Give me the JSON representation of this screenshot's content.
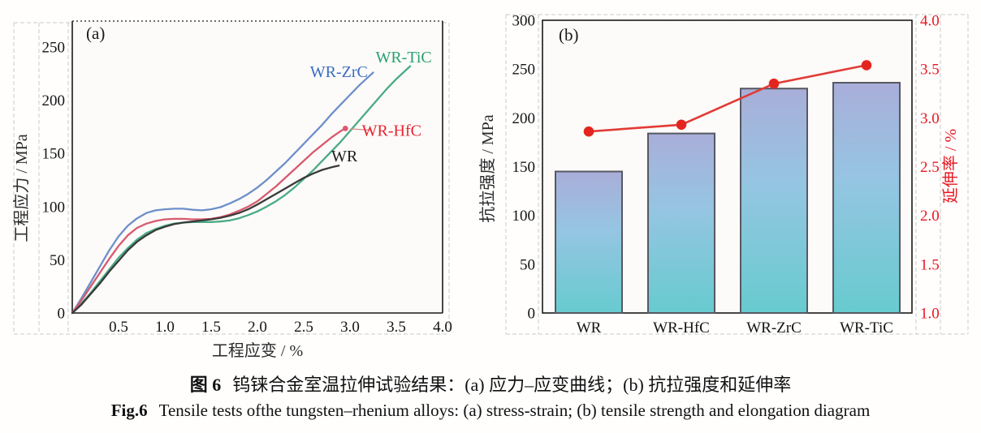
{
  "figure": {
    "caption_zh": {
      "prefix": "图 6",
      "text": "钨铼合金室温拉伸试验结果：(a) 应力–应变曲线；(b) 抗拉强度和延伸率"
    },
    "caption_en": {
      "prefix": "Fig.6",
      "text": "Tensile tests ofthe tungsten–rhenium alloys: (a) stress-strain; (b) tensile strength and elongation diagram"
    }
  },
  "chart_data": [
    {
      "id": "a",
      "type": "line",
      "panel_label": "(a)",
      "xlabel": "工程应变 / %",
      "ylabel": "工程应力 / MPa",
      "xlim": [
        0,
        4.0
      ],
      "ylim": [
        0,
        275
      ],
      "xticks": [
        0.5,
        1.0,
        1.5,
        2.0,
        2.5,
        3.0,
        3.5,
        4.0
      ],
      "yticks": [
        0,
        50,
        100,
        150,
        200,
        250
      ],
      "grid": false,
      "legend_position": "inline-labels",
      "series": [
        {
          "name": "WR-ZrC",
          "color": "#6d8fca",
          "label_color": "#3a6cc0",
          "label_at": [
            2.88,
            227
          ],
          "points": [
            [
              0,
              0
            ],
            [
              0.1,
              14
            ],
            [
              0.2,
              29
            ],
            [
              0.3,
              44
            ],
            [
              0.4,
              59
            ],
            [
              0.5,
              72
            ],
            [
              0.6,
              82
            ],
            [
              0.7,
              89
            ],
            [
              0.8,
              94
            ],
            [
              0.9,
              96.5
            ],
            [
              1.0,
              97.5
            ],
            [
              1.1,
              98
            ],
            [
              1.2,
              98
            ],
            [
              1.3,
              97
            ],
            [
              1.4,
              96.5
            ],
            [
              1.5,
              97.5
            ],
            [
              1.6,
              99.5
            ],
            [
              1.7,
              103
            ],
            [
              1.8,
              107
            ],
            [
              1.9,
              112
            ],
            [
              2.0,
              118
            ],
            [
              2.1,
              125
            ],
            [
              2.2,
              133
            ],
            [
              2.3,
              141
            ],
            [
              2.4,
              150
            ],
            [
              2.5,
              159
            ],
            [
              2.6,
              168
            ],
            [
              2.7,
              177
            ],
            [
              2.8,
              187
            ],
            [
              2.9,
              196
            ],
            [
              3.0,
              205
            ],
            [
              3.1,
              214
            ],
            [
              3.2,
              222
            ],
            [
              3.25,
              226
            ]
          ]
        },
        {
          "name": "WR-TiC",
          "color": "#4aab85",
          "label_color": "#2aa172",
          "label_at": [
            3.58,
            241
          ],
          "points": [
            [
              0,
              0
            ],
            [
              0.1,
              9
            ],
            [
              0.2,
              19
            ],
            [
              0.3,
              30
            ],
            [
              0.4,
              41
            ],
            [
              0.5,
              52
            ],
            [
              0.6,
              61
            ],
            [
              0.7,
              69
            ],
            [
              0.8,
              75
            ],
            [
              0.9,
              79
            ],
            [
              1.0,
              82
            ],
            [
              1.1,
              84
            ],
            [
              1.2,
              85
            ],
            [
              1.3,
              85.5
            ],
            [
              1.4,
              85.5
            ],
            [
              1.5,
              85.5
            ],
            [
              1.6,
              86
            ],
            [
              1.7,
              87
            ],
            [
              1.8,
              89
            ],
            [
              1.9,
              92
            ],
            [
              2.0,
              95.5
            ],
            [
              2.1,
              100
            ],
            [
              2.2,
              105
            ],
            [
              2.3,
              111
            ],
            [
              2.4,
              118
            ],
            [
              2.5,
              126
            ],
            [
              2.6,
              134
            ],
            [
              2.7,
              143
            ],
            [
              2.8,
              152
            ],
            [
              2.9,
              161
            ],
            [
              3.0,
              171
            ],
            [
              3.1,
              181
            ],
            [
              3.2,
              191
            ],
            [
              3.3,
              201
            ],
            [
              3.4,
              211
            ],
            [
              3.5,
              220
            ],
            [
              3.6,
              228
            ],
            [
              3.65,
              232
            ]
          ]
        },
        {
          "name": "WR-HfC",
          "color": "#d95a6e",
          "label_color": "#e8232e",
          "label_at": [
            3.45,
            172
          ],
          "end_marker": [
            2.95,
            173.5
          ],
          "leader": [
            [
              3.0,
              173
            ],
            [
              3.22,
              172
            ]
          ],
          "points": [
            [
              0,
              0
            ],
            [
              0.1,
              12
            ],
            [
              0.2,
              25
            ],
            [
              0.3,
              38
            ],
            [
              0.4,
              51
            ],
            [
              0.5,
              63
            ],
            [
              0.6,
              73
            ],
            [
              0.7,
              80
            ],
            [
              0.8,
              84
            ],
            [
              0.9,
              86.5
            ],
            [
              1.0,
              88
            ],
            [
              1.1,
              88.5
            ],
            [
              1.2,
              88.5
            ],
            [
              1.3,
              88
            ],
            [
              1.4,
              88
            ],
            [
              1.5,
              88.5
            ],
            [
              1.6,
              90
            ],
            [
              1.7,
              92.5
            ],
            [
              1.8,
              96
            ],
            [
              1.9,
              100
            ],
            [
              2.0,
              105
            ],
            [
              2.1,
              112
            ],
            [
              2.2,
              119
            ],
            [
              2.3,
              127
            ],
            [
              2.4,
              135
            ],
            [
              2.5,
              143
            ],
            [
              2.6,
              151
            ],
            [
              2.7,
              158
            ],
            [
              2.8,
              165
            ],
            [
              2.9,
              171
            ],
            [
              2.95,
              173.5
            ]
          ]
        },
        {
          "name": "WR",
          "color": "#3a3a3a",
          "label_color": "#1a1a1a",
          "label_at": [
            2.94,
            148
          ],
          "points": [
            [
              0,
              0
            ],
            [
              0.1,
              8
            ],
            [
              0.2,
              18
            ],
            [
              0.3,
              28
            ],
            [
              0.4,
              39
            ],
            [
              0.5,
              49
            ],
            [
              0.6,
              59
            ],
            [
              0.7,
              67
            ],
            [
              0.8,
              73
            ],
            [
              0.9,
              78
            ],
            [
              1.0,
              81
            ],
            [
              1.1,
              83.5
            ],
            [
              1.2,
              85
            ],
            [
              1.3,
              86
            ],
            [
              1.4,
              87
            ],
            [
              1.5,
              88
            ],
            [
              1.6,
              89.5
            ],
            [
              1.7,
              91.5
            ],
            [
              1.8,
              94
            ],
            [
              1.9,
              97.5
            ],
            [
              2.0,
              102
            ],
            [
              2.1,
              107
            ],
            [
              2.2,
              112
            ],
            [
              2.3,
              117
            ],
            [
              2.4,
              122
            ],
            [
              2.5,
              127
            ],
            [
              2.6,
              131
            ],
            [
              2.7,
              134.5
            ],
            [
              2.8,
              137
            ],
            [
              2.88,
              138.5
            ]
          ]
        }
      ]
    },
    {
      "id": "b",
      "type": "bar",
      "panel_label": "(b)",
      "categories": [
        "WR",
        "WR-HfC",
        "WR-ZrC",
        "WR-TiC"
      ],
      "grid": false,
      "bar_series": {
        "name": "抗拉强度",
        "ylabel": "抗拉强度 / MPa",
        "values": [
          145,
          184,
          230,
          236
        ],
        "ylim": [
          0,
          300
        ],
        "yticks": [
          0,
          50,
          100,
          150,
          200,
          250,
          300
        ],
        "bar_gradient_top": "#a9aed9",
        "bar_gradient_mid": "#95c5e2",
        "bar_gradient_bottom": "#67cbcf",
        "bar_border": "#575862"
      },
      "line_series": {
        "name": "延伸率",
        "ylabel": "延伸率 / %",
        "values": [
          2.86,
          2.93,
          3.35,
          3.54
        ],
        "ylim": [
          1.0,
          4.0
        ],
        "yticks": [
          1.0,
          1.5,
          2.0,
          2.5,
          3.0,
          3.5,
          4.0
        ],
        "color": "#e23b35",
        "marker_color": "#e4251f"
      }
    }
  ]
}
